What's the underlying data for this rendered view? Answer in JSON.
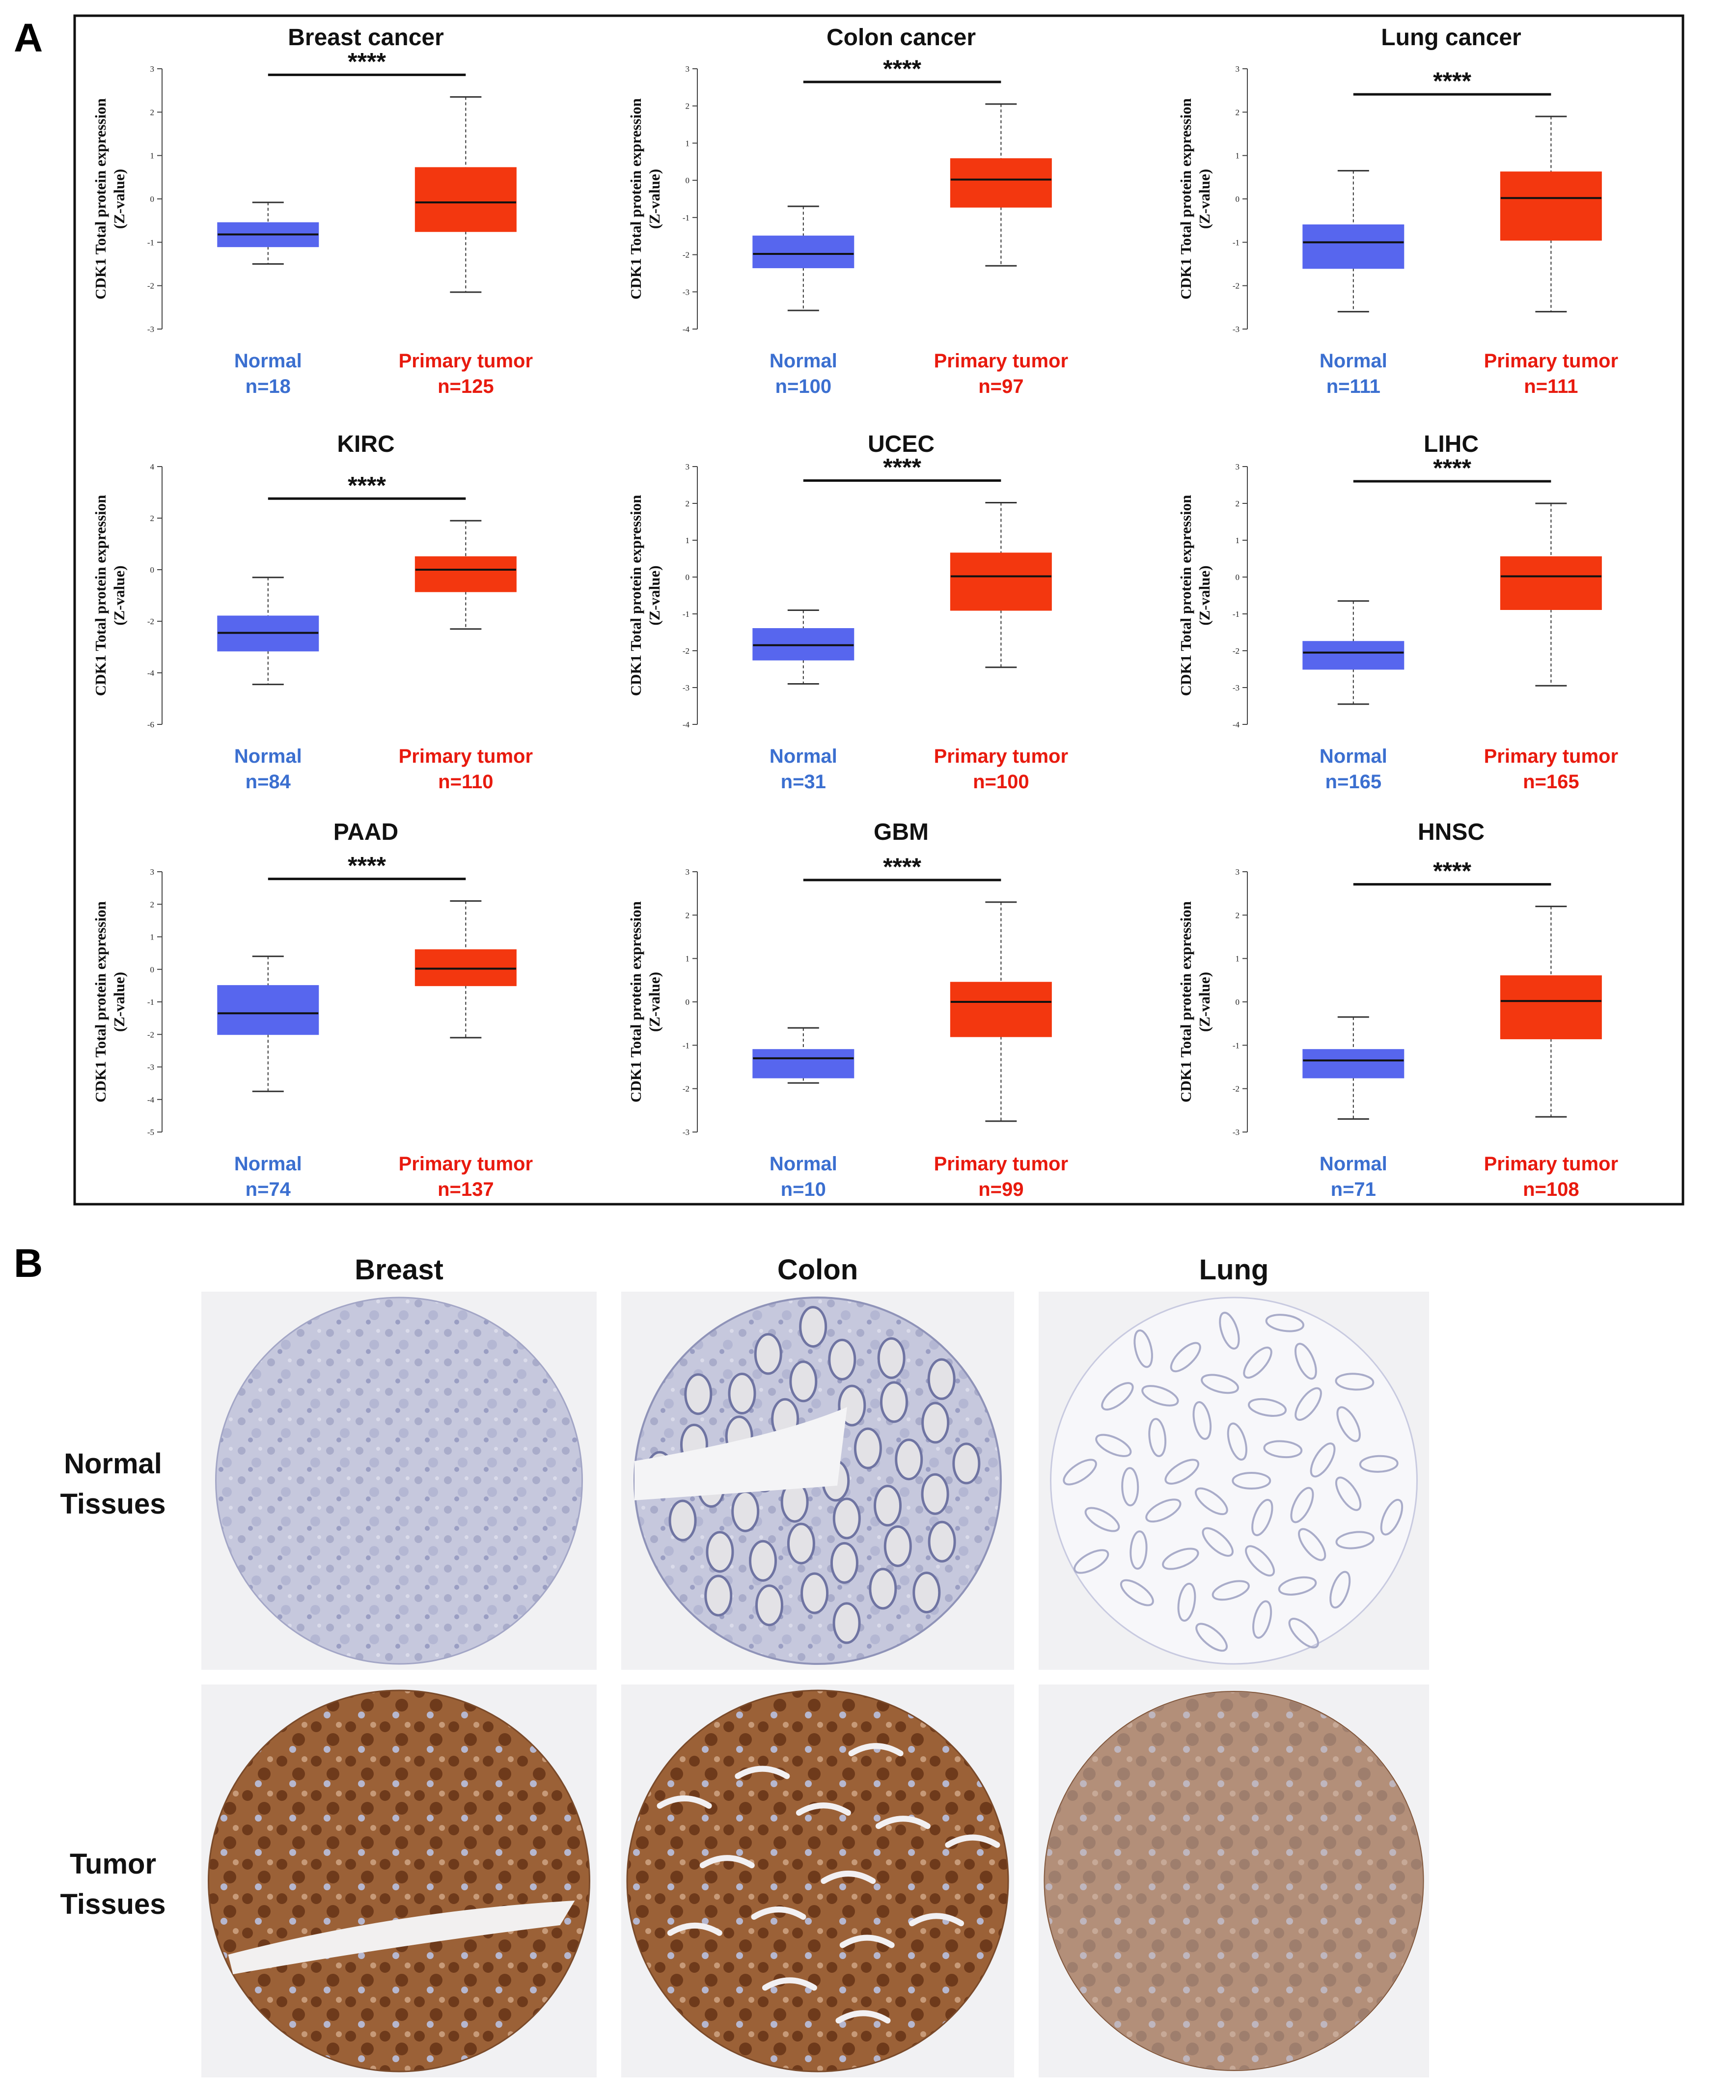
{
  "panel_a_letter": "A",
  "panel_b_letter": "B",
  "colors": {
    "normal_box": "#5766ee",
    "tumor_box": "#f3370f",
    "normal_label": "#3b6fd0",
    "tumor_label": "#e81a0e",
    "frame": "#111111",
    "tissue_bg": "#f1f1f3",
    "normal_stain": "#b3b6d2",
    "tumor_stain_dark": "#6e3a1b",
    "tumor_stain_mid": "#9b6137",
    "tumor_stain_light": "#c79a78"
  },
  "chart_data": [
    {
      "type": "box",
      "title": "Breast cancer",
      "ylabel": [
        "CDK1 Total protein expression",
        "(Z-value)"
      ],
      "ylim": [
        -3,
        3
      ],
      "yticks": [
        "3",
        "2",
        "1",
        "0",
        "-1",
        "-2",
        "-3"
      ],
      "significance": "****",
      "groups": [
        {
          "name": "Normal",
          "n": "n=18",
          "min": -1.5,
          "q1": -1.1,
          "median": -0.82,
          "q3": -0.55,
          "max": -0.08
        },
        {
          "name": "Primary tumor",
          "n": "n=125",
          "min": -2.15,
          "q1": -0.75,
          "median": -0.08,
          "q3": 0.72,
          "max": 2.35
        }
      ]
    },
    {
      "type": "box",
      "title": "Colon cancer",
      "ylabel": [
        "CDK1 Total protein expression",
        "(Z-value)"
      ],
      "ylim": [
        -4,
        3
      ],
      "yticks": [
        "3",
        "2",
        "1",
        "0",
        "-1",
        "-2",
        "-3",
        "-4"
      ],
      "significance": "****",
      "groups": [
        {
          "name": "Normal",
          "n": "n=100",
          "min": -3.5,
          "q1": -2.35,
          "median": -1.98,
          "q3": -1.5,
          "max": -0.7
        },
        {
          "name": "Primary tumor",
          "n": "n=97",
          "min": -2.3,
          "q1": -0.72,
          "median": 0.02,
          "q3": 0.58,
          "max": 2.05
        }
      ]
    },
    {
      "type": "box",
      "title": "Lung cancer",
      "ylabel": [
        "CDK1 Total protein expression",
        "(Z-value)"
      ],
      "ylim": [
        -3,
        3
      ],
      "yticks": [
        "3",
        "2",
        "1",
        "0",
        "-1",
        "-2",
        "-3"
      ],
      "significance": "****",
      "groups": [
        {
          "name": "Normal",
          "n": "n=111",
          "min": -2.6,
          "q1": -1.6,
          "median": -1.0,
          "q3": -0.6,
          "max": 0.65
        },
        {
          "name": "Primary tumor",
          "n": "n=111",
          "min": -2.6,
          "q1": -0.95,
          "median": 0.02,
          "q3": 0.62,
          "max": 1.9
        }
      ]
    },
    {
      "type": "box",
      "title": "KIRC",
      "ylabel": [
        "CDK1 Total protein expression",
        "(Z-value)"
      ],
      "ylim": [
        -6,
        4
      ],
      "yticks": [
        "4",
        "2",
        "0",
        "-2",
        "-4",
        "-6"
      ],
      "significance": "****",
      "groups": [
        {
          "name": "Normal",
          "n": "n=84",
          "min": -4.45,
          "q1": -3.15,
          "median": -2.45,
          "q3": -1.8,
          "max": -0.3
        },
        {
          "name": "Primary tumor",
          "n": "n=110",
          "min": -2.3,
          "q1": -0.85,
          "median": 0.0,
          "q3": 0.5,
          "max": 1.9
        }
      ]
    },
    {
      "type": "box",
      "title": "UCEC",
      "ylabel": [
        "CDK1 Total protein expression",
        "(Z-value)"
      ],
      "ylim": [
        -4,
        3
      ],
      "yticks": [
        "3",
        "2",
        "1",
        "0",
        "-1",
        "-2",
        "-3",
        "-4"
      ],
      "significance": "****",
      "groups": [
        {
          "name": "Normal",
          "n": "n=31",
          "min": -2.9,
          "q1": -2.25,
          "median": -1.85,
          "q3": -1.4,
          "max": -0.9
        },
        {
          "name": "Primary tumor",
          "n": "n=100",
          "min": -2.45,
          "q1": -0.9,
          "median": 0.02,
          "q3": 0.65,
          "max": 2.02
        }
      ]
    },
    {
      "type": "box",
      "title": "LIHC",
      "ylabel": [
        "CDK1 Total protein expression",
        "(Z-value)"
      ],
      "ylim": [
        -4,
        3
      ],
      "yticks": [
        "3",
        "2",
        "1",
        "0",
        "-1",
        "-2",
        "-3",
        "-4"
      ],
      "significance": "****",
      "groups": [
        {
          "name": "Normal",
          "n": "n=165",
          "min": -3.45,
          "q1": -2.5,
          "median": -2.05,
          "q3": -1.75,
          "max": -0.65
        },
        {
          "name": "Primary tumor",
          "n": "n=165",
          "min": -2.95,
          "q1": -0.88,
          "median": 0.02,
          "q3": 0.55,
          "max": 2.0
        }
      ]
    },
    {
      "type": "box",
      "title": "PAAD",
      "ylabel": [
        "CDK1 Total protein expression",
        "(Z-value)"
      ],
      "ylim": [
        -5,
        3
      ],
      "yticks": [
        "3",
        "2",
        "1",
        "0",
        "-1",
        "-2",
        "-3",
        "-4",
        "-5"
      ],
      "significance": "****",
      "groups": [
        {
          "name": "Normal",
          "n": "n=74",
          "min": -3.75,
          "q1": -2.0,
          "median": -1.35,
          "q3": -0.5,
          "max": 0.4
        },
        {
          "name": "Primary tumor",
          "n": "n=137",
          "min": -2.1,
          "q1": -0.5,
          "median": 0.02,
          "q3": 0.6,
          "max": 2.1
        }
      ]
    },
    {
      "type": "box",
      "title": "GBM",
      "ylabel": [
        "CDK1 Total protein expression",
        "(Z-value)"
      ],
      "ylim": [
        -3,
        3
      ],
      "yticks": [
        "3",
        "2",
        "1",
        "0",
        "-1",
        "-2",
        "-3"
      ],
      "significance": "****",
      "groups": [
        {
          "name": "Normal",
          "n": "n=10",
          "min": -1.87,
          "q1": -1.75,
          "median": -1.3,
          "q3": -1.1,
          "max": -0.6
        },
        {
          "name": "Primary tumor",
          "n": "n=99",
          "min": -2.75,
          "q1": -0.8,
          "median": 0.0,
          "q3": 0.45,
          "max": 2.3
        }
      ]
    },
    {
      "type": "box",
      "title": "HNSC",
      "ylabel": [
        "CDK1 Total protein expression",
        "(Z-value)"
      ],
      "ylim": [
        -3,
        3
      ],
      "yticks": [
        "3",
        "2",
        "1",
        "0",
        "-1",
        "-2",
        "-3"
      ],
      "significance": "****",
      "groups": [
        {
          "name": "Normal",
          "n": "n=71",
          "min": -2.7,
          "q1": -1.75,
          "median": -1.35,
          "q3": -1.1,
          "max": -0.35
        },
        {
          "name": "Primary tumor",
          "n": "n=108",
          "min": -2.65,
          "q1": -0.85,
          "median": 0.02,
          "q3": 0.6,
          "max": 2.2
        }
      ]
    }
  ],
  "tissue_panel": {
    "columns": [
      "Breast",
      "Colon",
      "Lung"
    ],
    "rows": [
      {
        "label_lines": [
          "Normal",
          "Tissues"
        ],
        "stain": "normal"
      },
      {
        "label_lines": [
          "Tumor",
          "Tissues"
        ],
        "stain": "tumor"
      }
    ]
  }
}
